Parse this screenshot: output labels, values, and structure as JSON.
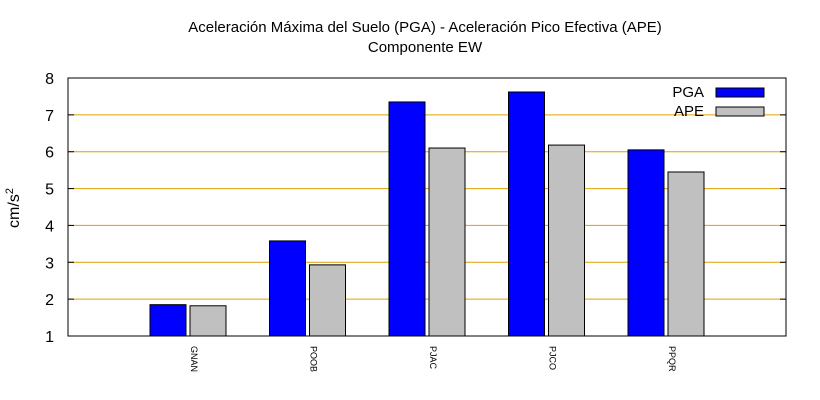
{
  "chart_data": {
    "type": "bar",
    "title": "Aceleración Máxima del Suelo (PGA) -  Aceleración Pico Efectiva (APE)",
    "subtitle": "Componente EW",
    "ylabel": "cm/s",
    "ylabel_sup": "2",
    "xlabel": "",
    "ylim": [
      1,
      8
    ],
    "yticks": [
      "1",
      "2",
      "3",
      "4",
      "5",
      "6",
      "7",
      "8"
    ],
    "grid": "horizontal",
    "legend_position": "top-right",
    "categories": [
      "GNAN",
      "POOB",
      "PJAC",
      "PJCO",
      "PPQR"
    ],
    "series": [
      {
        "name": "PGA",
        "color": "#0000ff",
        "values": [
          1.85,
          3.58,
          7.35,
          7.62,
          6.05
        ]
      },
      {
        "name": "APE",
        "color": "#c0c0c0",
        "values": [
          1.82,
          2.93,
          6.1,
          6.18,
          5.45
        ]
      }
    ],
    "gridline_color": "#e0a000"
  }
}
